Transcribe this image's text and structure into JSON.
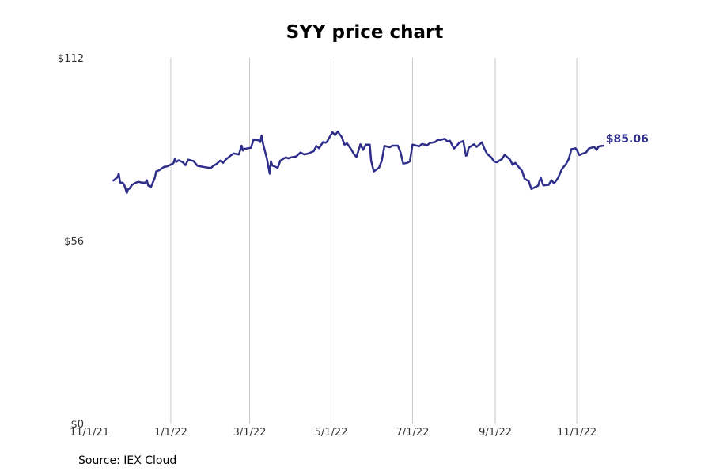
{
  "chart_data": {
    "type": "line",
    "title": "SYY price chart",
    "xlabel": "",
    "ylabel": "",
    "y_ticks": [
      "$0",
      "$56",
      "$112"
    ],
    "y_tick_values": [
      0,
      56,
      112
    ],
    "ylim": [
      0,
      112
    ],
    "x_ticks": [
      "11/1/21",
      "1/1/22",
      "3/1/22",
      "5/1/22",
      "7/1/22",
      "9/1/22",
      "11/1/22"
    ],
    "x_tick_dates": [
      "2021-11-01",
      "2022-01-01",
      "2022-03-01",
      "2022-05-01",
      "2022-07-01",
      "2022-09-01",
      "2022-11-01"
    ],
    "xlim": [
      "2021-11-01",
      "2023-01-01"
    ],
    "grid": "vertical",
    "line_color": "#2e2e8a",
    "grid_color": "#c8c8c8",
    "last_value_label": "$85.06",
    "series": [
      {
        "values": [
          [
            "2021-11-19",
            74.4
          ],
          [
            "2021-11-22",
            75.4
          ],
          [
            "2021-11-23",
            76.5
          ],
          [
            "2021-11-24",
            73.8
          ],
          [
            "2021-11-26",
            73.7
          ],
          [
            "2021-11-27",
            73.2
          ],
          [
            "2021-11-29",
            70.6
          ],
          [
            "2021-11-30",
            71.7
          ],
          [
            "2021-12-01",
            71.9
          ],
          [
            "2021-12-03",
            73.1
          ],
          [
            "2021-12-06",
            73.8
          ],
          [
            "2021-12-08",
            74.0
          ],
          [
            "2021-12-10",
            73.8
          ],
          [
            "2021-12-13",
            73.7
          ],
          [
            "2021-12-14",
            74.5
          ],
          [
            "2021-12-15",
            72.9
          ],
          [
            "2021-12-17",
            72.3
          ],
          [
            "2021-12-20",
            75.2
          ],
          [
            "2021-12-21",
            77.2
          ],
          [
            "2021-12-23",
            77.5
          ],
          [
            "2021-12-27",
            78.6
          ],
          [
            "2021-12-29",
            78.7
          ],
          [
            "2022-01-03",
            79.7
          ],
          [
            "2022-01-04",
            81.0
          ],
          [
            "2022-01-05",
            80.1
          ],
          [
            "2022-01-07",
            80.6
          ],
          [
            "2022-01-10",
            80.0
          ],
          [
            "2022-01-12",
            79.1
          ],
          [
            "2022-01-14",
            80.8
          ],
          [
            "2022-01-18",
            80.4
          ],
          [
            "2022-01-21",
            78.9
          ],
          [
            "2022-01-25",
            78.6
          ],
          [
            "2022-01-31",
            78.2
          ],
          [
            "2022-02-02",
            79.0
          ],
          [
            "2022-02-04",
            79.4
          ],
          [
            "2022-02-07",
            80.5
          ],
          [
            "2022-02-09",
            79.8
          ],
          [
            "2022-02-11",
            80.8
          ],
          [
            "2022-02-15",
            82.1
          ],
          [
            "2022-02-17",
            82.7
          ],
          [
            "2022-02-21",
            82.4
          ],
          [
            "2022-02-23",
            85.1
          ],
          [
            "2022-02-24",
            83.6
          ],
          [
            "2022-02-25",
            84.1
          ],
          [
            "2022-02-28",
            84.3
          ],
          [
            "2022-03-02",
            84.4
          ],
          [
            "2022-03-04",
            87.0
          ],
          [
            "2022-03-08",
            86.7
          ],
          [
            "2022-03-09",
            86.2
          ],
          [
            "2022-03-10",
            88.2
          ],
          [
            "2022-03-11",
            85.8
          ],
          [
            "2022-03-14",
            81.0
          ],
          [
            "2022-03-16",
            76.5
          ],
          [
            "2022-03-17",
            80.3
          ],
          [
            "2022-03-18",
            79.0
          ],
          [
            "2022-03-22",
            78.3
          ],
          [
            "2022-03-24",
            80.5
          ],
          [
            "2022-03-28",
            81.5
          ],
          [
            "2022-03-30",
            81.2
          ],
          [
            "2022-04-01",
            81.5
          ],
          [
            "2022-04-05",
            81.8
          ],
          [
            "2022-04-08",
            83.0
          ],
          [
            "2022-04-11",
            82.4
          ],
          [
            "2022-04-14",
            82.7
          ],
          [
            "2022-04-18",
            83.4
          ],
          [
            "2022-04-20",
            85.0
          ],
          [
            "2022-04-22",
            84.3
          ],
          [
            "2022-04-25",
            86.2
          ],
          [
            "2022-04-27",
            86.0
          ],
          [
            "2022-04-28",
            86.3
          ],
          [
            "2022-05-02",
            89.2
          ],
          [
            "2022-05-03",
            88.8
          ],
          [
            "2022-05-04",
            88.3
          ],
          [
            "2022-05-06",
            89.4
          ],
          [
            "2022-05-09",
            87.7
          ],
          [
            "2022-05-11",
            85.4
          ],
          [
            "2022-05-13",
            85.8
          ],
          [
            "2022-05-16",
            84.0
          ],
          [
            "2022-05-18",
            82.6
          ],
          [
            "2022-05-20",
            81.6
          ],
          [
            "2022-05-23",
            85.5
          ],
          [
            "2022-05-25",
            83.8
          ],
          [
            "2022-05-27",
            85.4
          ],
          [
            "2022-05-30",
            85.4
          ],
          [
            "2022-05-31",
            80.5
          ],
          [
            "2022-06-02",
            77.2
          ],
          [
            "2022-06-06",
            78.4
          ],
          [
            "2022-06-08",
            80.5
          ],
          [
            "2022-06-10",
            85.0
          ],
          [
            "2022-06-14",
            84.6
          ],
          [
            "2022-06-16",
            85.1
          ],
          [
            "2022-06-20",
            85.1
          ],
          [
            "2022-06-22",
            83.0
          ],
          [
            "2022-06-24",
            79.6
          ],
          [
            "2022-06-27",
            79.8
          ],
          [
            "2022-06-29",
            80.3
          ],
          [
            "2022-07-01",
            85.4
          ],
          [
            "2022-07-06",
            84.9
          ],
          [
            "2022-07-08",
            85.6
          ],
          [
            "2022-07-12",
            85.2
          ],
          [
            "2022-07-14",
            85.9
          ],
          [
            "2022-07-18",
            86.2
          ],
          [
            "2022-07-20",
            86.9
          ],
          [
            "2022-07-22",
            86.8
          ],
          [
            "2022-07-25",
            87.2
          ],
          [
            "2022-07-27",
            86.4
          ],
          [
            "2022-07-29",
            86.6
          ],
          [
            "2022-08-01",
            84.2
          ],
          [
            "2022-08-03",
            85.0
          ],
          [
            "2022-08-05",
            86.0
          ],
          [
            "2022-08-08",
            86.5
          ],
          [
            "2022-08-10",
            82.0
          ],
          [
            "2022-08-11",
            82.3
          ],
          [
            "2022-08-12",
            84.4
          ],
          [
            "2022-08-16",
            85.5
          ],
          [
            "2022-08-18",
            84.7
          ],
          [
            "2022-08-22",
            86.1
          ],
          [
            "2022-08-24",
            84.0
          ],
          [
            "2022-08-26",
            82.5
          ],
          [
            "2022-08-29",
            81.5
          ],
          [
            "2022-08-31",
            80.3
          ],
          [
            "2022-09-02",
            80.0
          ],
          [
            "2022-09-06",
            81.0
          ],
          [
            "2022-09-08",
            82.3
          ],
          [
            "2022-09-12",
            80.8
          ],
          [
            "2022-09-14",
            79.2
          ],
          [
            "2022-09-16",
            79.8
          ],
          [
            "2022-09-19",
            78.3
          ],
          [
            "2022-09-21",
            77.4
          ],
          [
            "2022-09-23",
            74.9
          ],
          [
            "2022-09-26",
            74.2
          ],
          [
            "2022-09-28",
            71.8
          ],
          [
            "2022-10-03",
            72.8
          ],
          [
            "2022-10-05",
            75.3
          ],
          [
            "2022-10-07",
            72.9
          ],
          [
            "2022-10-11",
            73.1
          ],
          [
            "2022-10-13",
            74.5
          ],
          [
            "2022-10-15",
            73.5
          ],
          [
            "2022-10-18",
            75.2
          ],
          [
            "2022-10-20",
            77.1
          ],
          [
            "2022-10-21",
            78.0
          ],
          [
            "2022-10-24",
            79.5
          ],
          [
            "2022-10-26",
            81.0
          ],
          [
            "2022-10-28",
            84.0
          ],
          [
            "2022-10-31",
            84.3
          ],
          [
            "2022-11-01",
            83.8
          ],
          [
            "2022-11-03",
            82.2
          ],
          [
            "2022-11-05",
            82.6
          ],
          [
            "2022-11-08",
            83.0
          ],
          [
            "2022-11-10",
            84.2
          ],
          [
            "2022-11-14",
            84.7
          ],
          [
            "2022-11-16",
            83.8
          ],
          [
            "2022-11-17",
            84.6
          ],
          [
            "2022-11-18",
            84.9
          ],
          [
            "2022-11-21",
            85.06
          ]
        ]
      }
    ]
  },
  "footer": {
    "source": "Source: IEX Cloud"
  }
}
